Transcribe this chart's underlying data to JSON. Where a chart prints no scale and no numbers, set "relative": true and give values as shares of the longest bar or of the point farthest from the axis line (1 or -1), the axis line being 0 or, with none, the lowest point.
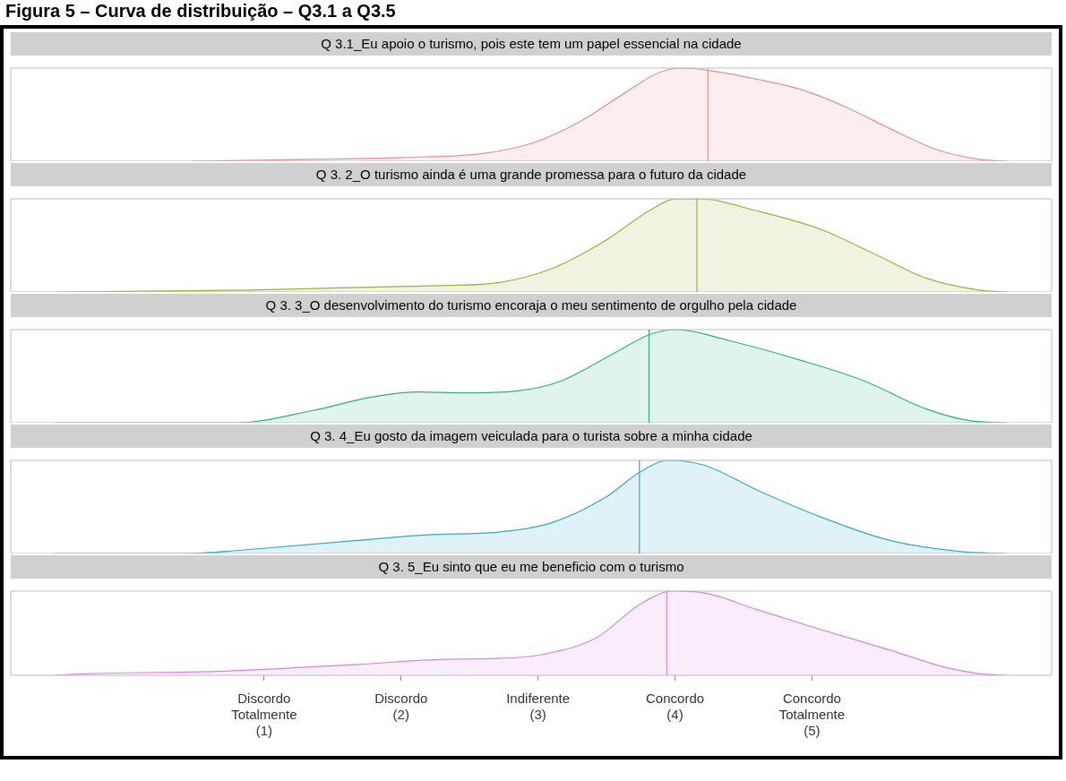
{
  "chart_data": [
    {
      "type": "area",
      "title": "Q 3.1_Eu apoio o turismo, pois este tem um papel essencial na cidade",
      "annotations": [
        "Figura 5 – Curva de distribuição – Q3.1 a Q3.5"
      ],
      "relative": true,
      "xlim": [
        -0.85,
        6.75
      ],
      "tick_labels": false,
      "series": [
        {
          "color": "#e0928c",
          "x": [
            0.47,
            1.35,
            2.0,
            2.58,
            2.97,
            3.3,
            3.62,
            3.88,
            4.05,
            4.27,
            4.6,
            4.92,
            5.25,
            5.57,
            5.9,
            6.22,
            6.42
          ],
          "values": [
            0,
            0.02,
            0.04,
            0.08,
            0.2,
            0.42,
            0.72,
            0.95,
            1.0,
            0.97,
            0.88,
            0.77,
            0.58,
            0.35,
            0.13,
            0.02,
            0
          ]
        }
      ],
      "ref_lines": [
        {
          "axis": "x",
          "value": 4.24
        }
      ]
    },
    {
      "type": "area",
      "title": "Q 3. 2_O turismo ainda é uma grande promessa para o futuro da cidade",
      "relative": true,
      "xlim": [
        -0.85,
        6.75
      ],
      "tick_labels": false,
      "series": [
        {
          "color": "#a9ab3a",
          "x": [
            -0.53,
            0.9,
            1.68,
            2.32,
            2.71,
            3.1,
            3.49,
            3.82,
            4.01,
            4.18,
            4.6,
            5.05,
            5.44,
            5.83,
            6.22,
            6.42
          ],
          "values": [
            0,
            0.02,
            0.05,
            0.07,
            0.1,
            0.25,
            0.55,
            0.88,
            1.0,
            1.0,
            0.87,
            0.68,
            0.42,
            0.15,
            0.02,
            0
          ]
        }
      ],
      "ref_lines": [
        {
          "axis": "x",
          "value": 4.16
        }
      ]
    },
    {
      "type": "area",
      "title": "Q 3. 3_O desenvolvimento do turismo encoraja o meu sentimento de orgulho pela cidade",
      "relative": true,
      "xlim": [
        -0.85,
        6.75
      ],
      "tick_labels": false,
      "series": [
        {
          "color": "#2fae86",
          "x": [
            -0.53,
            0.8,
            1.35,
            1.8,
            2.13,
            2.45,
            2.84,
            3.17,
            3.56,
            3.82,
            4.01,
            4.4,
            4.92,
            5.38,
            5.83,
            6.16,
            6.42
          ],
          "values": [
            0,
            0,
            0.13,
            0.28,
            0.33,
            0.32,
            0.34,
            0.45,
            0.75,
            0.95,
            1.0,
            0.88,
            0.67,
            0.45,
            0.15,
            0.02,
            0
          ]
        }
      ],
      "ref_lines": [
        {
          "axis": "x",
          "value": 3.81
        }
      ]
    },
    {
      "type": "area",
      "title": "Q 3. 4_Eu gosto da imagem veiculada para o turista sobre a minha cidade",
      "relative": true,
      "xlim": [
        -0.85,
        6.75
      ],
      "tick_labels": false,
      "series": [
        {
          "color": "#34a8c4",
          "x": [
            -0.53,
            0.41,
            1.03,
            1.68,
            2.19,
            2.71,
            3.1,
            3.49,
            3.75,
            3.95,
            4.21,
            4.6,
            5.05,
            5.57,
            6.09,
            6.42
          ],
          "values": [
            0,
            0,
            0.06,
            0.14,
            0.2,
            0.23,
            0.33,
            0.6,
            0.88,
            1.0,
            0.95,
            0.68,
            0.4,
            0.14,
            0.02,
            0
          ]
        }
      ],
      "ref_lines": [
        {
          "axis": "x",
          "value": 3.74
        }
      ]
    },
    {
      "type": "area",
      "title": "Q 3. 5_Eu sinto que eu me beneficio com o turismo",
      "relative": true,
      "xlim": [
        -0.85,
        6.75
      ],
      "tick_labels": "x",
      "xticks": [
        {
          "value": 1,
          "label": "Discordo\nTotalmente\n(1)"
        },
        {
          "value": 2,
          "label": "Discordo\n(2)"
        },
        {
          "value": 3,
          "label": "Indiferente\n(3)"
        },
        {
          "value": 4,
          "label": "Concordo\n(4)"
        },
        {
          "value": 5,
          "label": "Concordo\nTotalmente\n(5)"
        }
      ],
      "series": [
        {
          "color": "#d786d6",
          "x": [
            -0.53,
            -0.27,
            0.7,
            1.68,
            2.32,
            2.71,
            3.04,
            3.43,
            3.75,
            3.98,
            4.21,
            4.6,
            5.05,
            5.57,
            5.96,
            6.22,
            6.42
          ],
          "values": [
            0,
            0.02,
            0.05,
            0.13,
            0.19,
            0.2,
            0.25,
            0.45,
            0.85,
            1.0,
            0.98,
            0.78,
            0.55,
            0.3,
            0.1,
            0.02,
            0
          ]
        }
      ],
      "ref_lines": [
        {
          "axis": "x",
          "value": 3.94
        }
      ]
    }
  ]
}
